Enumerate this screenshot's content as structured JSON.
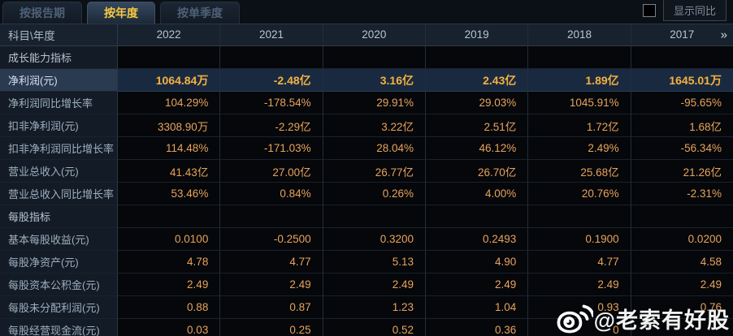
{
  "tabs": [
    {
      "label": "按报告期",
      "active": false
    },
    {
      "label": "按年度",
      "active": true
    },
    {
      "label": "按单季度",
      "active": false
    }
  ],
  "controls": {
    "yoy_label": "显示同比",
    "yoy_checkbox_checked": false
  },
  "table": {
    "corner_label": "科目\\年度",
    "years": [
      "2022",
      "2021",
      "2020",
      "2019",
      "2018",
      "2017"
    ],
    "more_icon": "»",
    "rows": [
      {
        "type": "section",
        "label": "成长能力指标",
        "values": [
          "",
          "",
          "",
          "",
          "",
          ""
        ]
      },
      {
        "type": "data",
        "highlight": true,
        "label": "净利润(元)",
        "values": [
          "1064.84万",
          "-2.48亿",
          "3.16亿",
          "2.43亿",
          "1.89亿",
          "1645.01万"
        ]
      },
      {
        "type": "data",
        "label": "净利润同比增长率",
        "values": [
          "104.29%",
          "-178.54%",
          "29.91%",
          "29.03%",
          "1045.91%",
          "-95.65%"
        ]
      },
      {
        "type": "data",
        "label": "扣非净利润(元)",
        "values": [
          "3308.90万",
          "-2.29亿",
          "3.22亿",
          "2.51亿",
          "1.72亿",
          "1.68亿"
        ]
      },
      {
        "type": "data",
        "label": "扣非净利润同比增长率",
        "values": [
          "114.48%",
          "-171.03%",
          "28.04%",
          "46.12%",
          "2.49%",
          "-56.34%"
        ]
      },
      {
        "type": "data",
        "label": "营业总收入(元)",
        "values": [
          "41.43亿",
          "27.00亿",
          "26.77亿",
          "26.70亿",
          "25.68亿",
          "21.26亿"
        ]
      },
      {
        "type": "data",
        "label": "营业总收入同比增长率",
        "values": [
          "53.46%",
          "0.84%",
          "0.26%",
          "4.00%",
          "20.76%",
          "-2.31%"
        ]
      },
      {
        "type": "section",
        "label": "每股指标",
        "values": [
          "",
          "",
          "",
          "",
          "",
          ""
        ]
      },
      {
        "type": "data",
        "label": "基本每股收益(元)",
        "values": [
          "0.0100",
          "-0.2500",
          "0.3200",
          "0.2493",
          "0.1900",
          "0.0200"
        ]
      },
      {
        "type": "data",
        "label": "每股净资产(元)",
        "values": [
          "4.78",
          "4.77",
          "5.13",
          "4.90",
          "4.77",
          "4.58"
        ]
      },
      {
        "type": "data",
        "label": "每股资本公积金(元)",
        "values": [
          "2.49",
          "2.49",
          "2.49",
          "2.49",
          "2.49",
          "2.49"
        ]
      },
      {
        "type": "data",
        "label": "每股未分配利润(元)",
        "values": [
          "0.88",
          "0.87",
          "1.23",
          "1.04",
          "0.93",
          "0.76"
        ]
      },
      {
        "type": "data",
        "label": "每股经营现金流(元)",
        "values": [
          "0.03",
          "0.25",
          "0.52",
          "0.36",
          "0",
          ""
        ]
      }
    ]
  },
  "watermark": {
    "icon": "weibo-icon",
    "text": "@老索有好股"
  },
  "colors": {
    "accent_gold": "#f8c842",
    "value_orange": "#e8a35c",
    "highlight_value_gold": "#f6b13f",
    "highlight_row_bg": "#192a40",
    "label_column_bg": "#131b26",
    "header_row_bg": "#18222e",
    "page_bg": "#05070a"
  }
}
